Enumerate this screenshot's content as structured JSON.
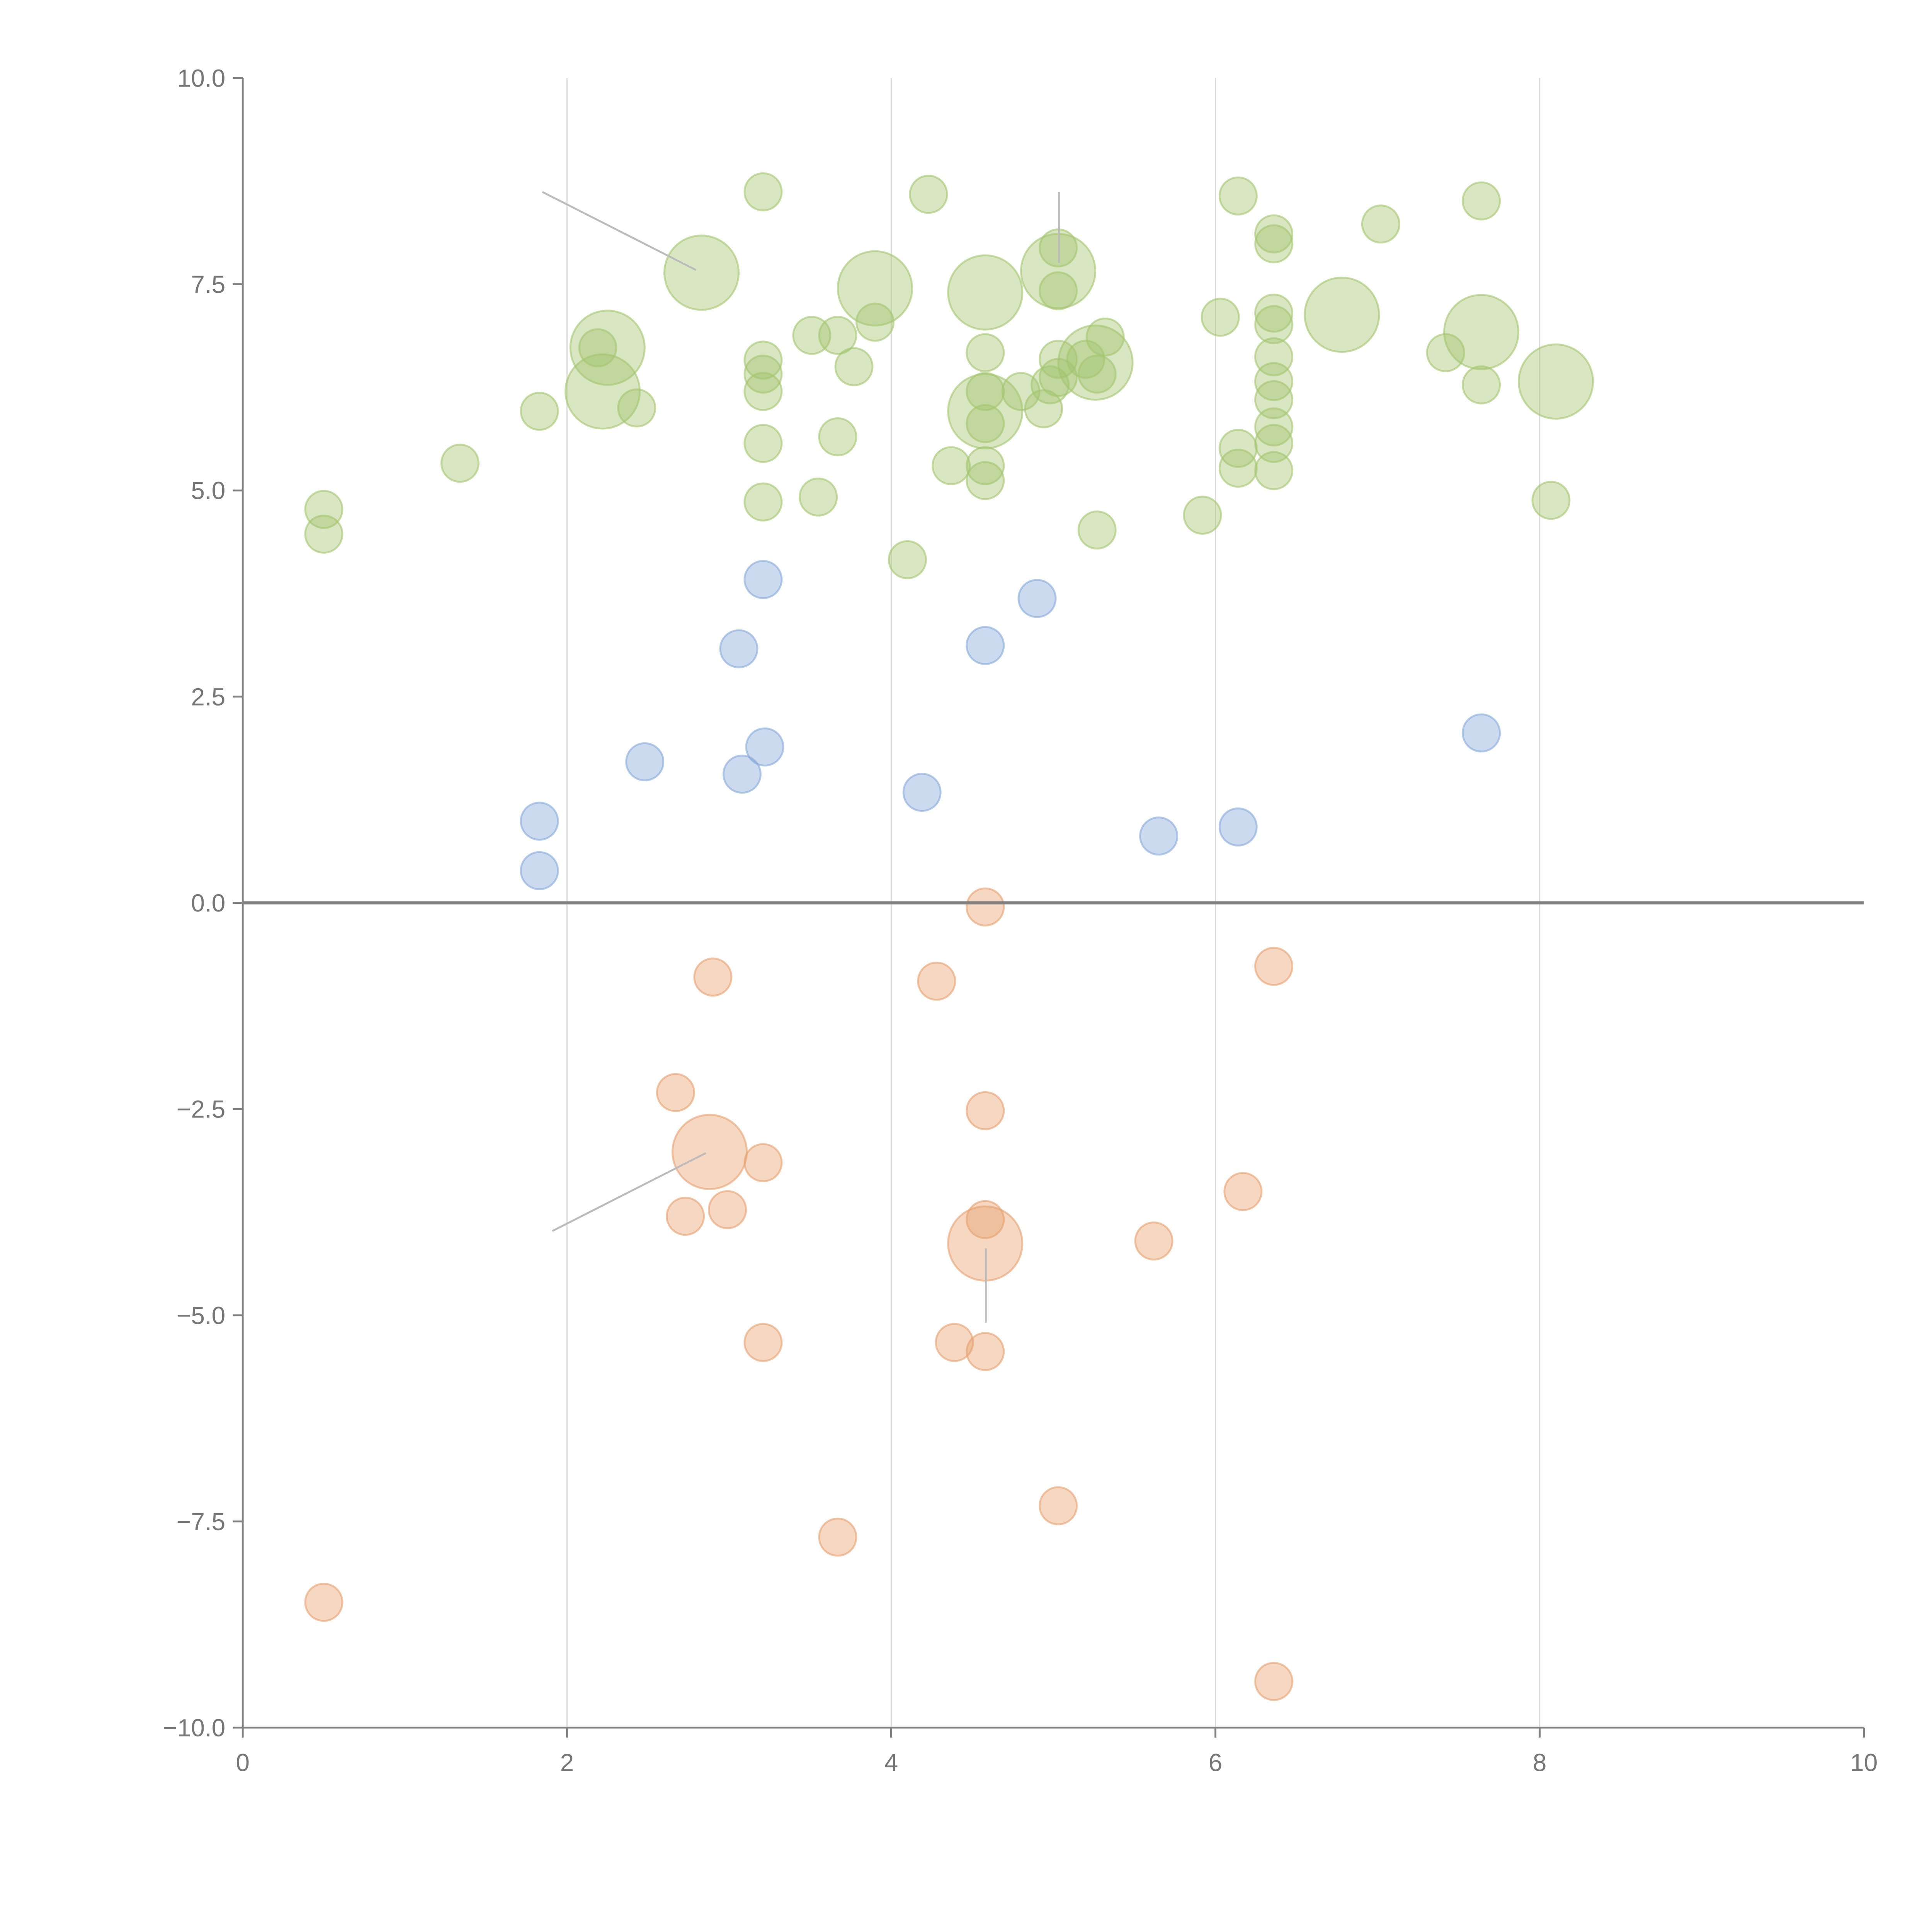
{
  "chart_data": {
    "type": "scatter",
    "title": "",
    "xlabel": "",
    "ylabel": "",
    "xlim": [
      0,
      10
    ],
    "ylim": [
      -10,
      10
    ],
    "x_ticks": [
      "0",
      "2",
      "4",
      "6",
      "8",
      "10"
    ],
    "y_ticks": [
      "10.0",
      "7.5",
      "5.0",
      "2.5",
      "0.0",
      "−2.5",
      "−5.0",
      "−7.5",
      "−10.0"
    ],
    "grid": "vertical lines at x ticks",
    "reference_line_y": 0,
    "colors": {
      "green": "#a3c46e",
      "blue": "#86a8d8",
      "orange": "#e6a06e"
    },
    "series": [
      {
        "name": "green",
        "points": [
          [
            0.5,
            4.77,
            1
          ],
          [
            0.5,
            4.47,
            1
          ],
          [
            1.34,
            5.33,
            1
          ],
          [
            1.83,
            5.96,
            1
          ],
          [
            2.22,
            6.2,
            4
          ],
          [
            2.25,
            6.73,
            4
          ],
          [
            2.19,
            6.73,
            1
          ],
          [
            2.43,
            6.0,
            1
          ],
          [
            2.83,
            7.64,
            4
          ],
          [
            3.21,
            8.62,
            1
          ],
          [
            3.21,
            6.58,
            1
          ],
          [
            3.21,
            6.41,
            1
          ],
          [
            3.21,
            6.2,
            1
          ],
          [
            3.21,
            5.57,
            1
          ],
          [
            3.21,
            4.86,
            1
          ],
          [
            3.51,
            6.88,
            1
          ],
          [
            3.55,
            4.92,
            1
          ],
          [
            3.67,
            6.88,
            1
          ],
          [
            3.67,
            5.65,
            1
          ],
          [
            3.77,
            6.5,
            1
          ],
          [
            3.9,
            7.45,
            4
          ],
          [
            3.9,
            7.04,
            1
          ],
          [
            4.1,
            4.16,
            1
          ],
          [
            4.23,
            8.59,
            1
          ],
          [
            4.37,
            5.3,
            1
          ],
          [
            4.58,
            7.4,
            4
          ],
          [
            4.58,
            6.67,
            1
          ],
          [
            4.58,
            6.2,
            1
          ],
          [
            4.58,
            5.96,
            4
          ],
          [
            4.58,
            5.81,
            1
          ],
          [
            4.58,
            5.3,
            1
          ],
          [
            4.58,
            5.12,
            1
          ],
          [
            4.8,
            6.2,
            1
          ],
          [
            4.94,
            5.99,
            1
          ],
          [
            4.98,
            6.28,
            1
          ],
          [
            5.03,
            7.94,
            1
          ],
          [
            5.03,
            7.66,
            4
          ],
          [
            5.03,
            7.42,
            1
          ],
          [
            5.03,
            6.59,
            1
          ],
          [
            5.03,
            6.37,
            1
          ],
          [
            5.2,
            6.59,
            1
          ],
          [
            5.26,
            6.55,
            4
          ],
          [
            5.27,
            6.41,
            1
          ],
          [
            5.32,
            6.86,
            1
          ],
          [
            5.27,
            4.52,
            1
          ],
          [
            5.92,
            4.7,
            1
          ],
          [
            6.03,
            7.1,
            1
          ],
          [
            6.14,
            8.57,
            1
          ],
          [
            6.14,
            5.51,
            1
          ],
          [
            6.14,
            5.27,
            1
          ],
          [
            6.36,
            8.11,
            1
          ],
          [
            6.36,
            7.99,
            1
          ],
          [
            6.36,
            7.15,
            1
          ],
          [
            6.36,
            7.01,
            1
          ],
          [
            6.36,
            6.62,
            1
          ],
          [
            6.36,
            6.32,
            1
          ],
          [
            6.36,
            6.1,
            1
          ],
          [
            6.36,
            5.77,
            1
          ],
          [
            6.36,
            5.57,
            1
          ],
          [
            6.36,
            5.24,
            1
          ],
          [
            6.78,
            7.13,
            4
          ],
          [
            7.02,
            8.23,
            1
          ],
          [
            7.42,
            6.67,
            1
          ],
          [
            7.64,
            8.51,
            1
          ],
          [
            7.64,
            6.92,
            4
          ],
          [
            7.64,
            6.28,
            1
          ],
          [
            8.07,
            4.88,
            1
          ],
          [
            8.1,
            6.32,
            4
          ]
        ]
      },
      {
        "name": "blue",
        "points": [
          [
            1.83,
            0.99,
            1
          ],
          [
            1.83,
            0.39,
            1
          ],
          [
            2.48,
            1.71,
            1
          ],
          [
            3.06,
            3.08,
            1
          ],
          [
            3.08,
            1.56,
            1
          ],
          [
            3.21,
            3.92,
            1
          ],
          [
            3.22,
            1.89,
            1
          ],
          [
            4.19,
            1.34,
            1
          ],
          [
            4.58,
            3.12,
            1
          ],
          [
            4.9,
            3.69,
            1
          ],
          [
            5.65,
            0.81,
            1
          ],
          [
            6.14,
            0.92,
            1
          ],
          [
            7.64,
            2.06,
            1
          ]
        ]
      },
      {
        "name": "orange",
        "points": [
          [
            4.58,
            -0.05,
            1
          ],
          [
            2.9,
            -0.9,
            1
          ],
          [
            4.28,
            -0.95,
            1
          ],
          [
            6.36,
            -0.77,
            1
          ],
          [
            2.67,
            -2.3,
            1
          ],
          [
            4.58,
            -2.52,
            1
          ],
          [
            2.88,
            -3.02,
            4
          ],
          [
            3.21,
            -3.15,
            1
          ],
          [
            6.17,
            -3.5,
            1
          ],
          [
            2.99,
            -3.72,
            1
          ],
          [
            2.73,
            -3.8,
            1
          ],
          [
            4.58,
            -3.84,
            1
          ],
          [
            4.58,
            -4.13,
            4
          ],
          [
            5.62,
            -4.1,
            1
          ],
          [
            3.21,
            -5.33,
            1
          ],
          [
            4.39,
            -5.33,
            1
          ],
          [
            4.58,
            -5.44,
            1
          ],
          [
            5.03,
            -7.31,
            1
          ],
          [
            3.67,
            -7.69,
            1
          ],
          [
            0.5,
            -8.48,
            1
          ],
          [
            6.36,
            -9.44,
            1
          ]
        ]
      }
    ]
  }
}
